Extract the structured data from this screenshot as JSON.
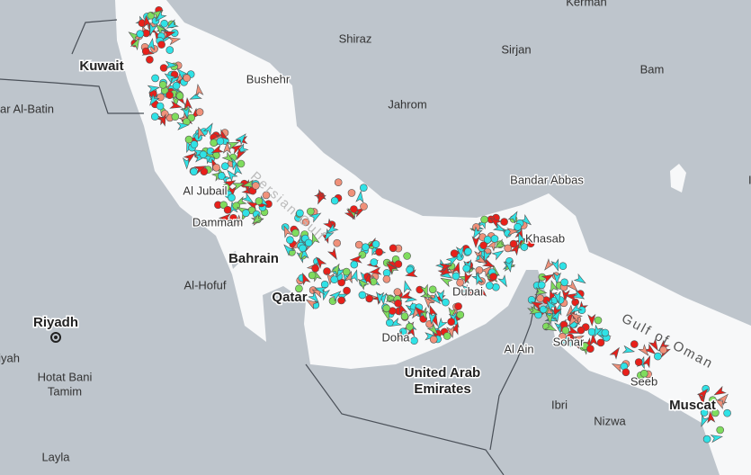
{
  "places": [
    {
      "label": "Kerman"
    },
    {
      "label": "Shiraz"
    },
    {
      "label": "Sirjan"
    },
    {
      "label": "Bam"
    },
    {
      "label": "Kuwait"
    },
    {
      "label": "Bushehr"
    },
    {
      "label": "ar Al-Batin"
    },
    {
      "label": "Jahrom"
    },
    {
      "label": "Bandar Abbas"
    },
    {
      "label": "Khasab"
    },
    {
      "label": "Al Jubail"
    },
    {
      "label": "Dammam"
    },
    {
      "label": "Bahrain"
    },
    {
      "label": "Al-Hofuf"
    },
    {
      "label": "Qatar"
    },
    {
      "label": "Doha"
    },
    {
      "label": "Riyadh"
    },
    {
      "label": "iyah"
    },
    {
      "label": "Hotat Bani"
    },
    {
      "label": "Tamim"
    },
    {
      "label": "Layla"
    },
    {
      "label": "United Arab"
    },
    {
      "label": "Emirates"
    },
    {
      "label": "Dubai"
    },
    {
      "label": "Al Ain"
    },
    {
      "label": "Ibri"
    },
    {
      "label": "Nizwa"
    },
    {
      "label": "Sohar"
    },
    {
      "label": "Seeb"
    },
    {
      "label": "Muscat"
    },
    {
      "label": "Gulf of Oman"
    },
    {
      "label": "Persian Gulf"
    },
    {
      "label": "Ir"
    }
  ]
}
